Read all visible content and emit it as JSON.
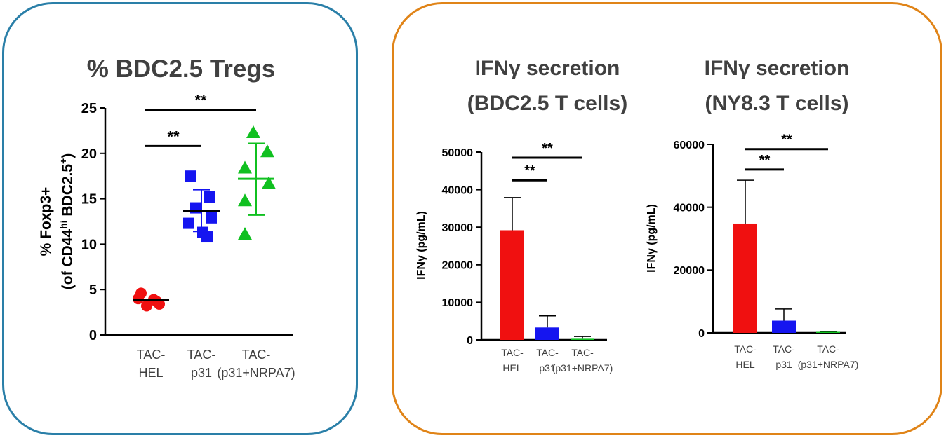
{
  "left_panel": {
    "title": "% BDC2.5 Tregs",
    "ylabel_line1": "% Foxp3+",
    "ylabel_line2": {
      "a": "(of CD44",
      "sup1": "hi",
      "b": " BDC2.5",
      "sup2": "+",
      "c": ")"
    }
  },
  "right_panel": {
    "chart1_title_line1": "IFNγ secretion",
    "chart1_title_line2": "(BDC2.5 T cells)",
    "chart2_title_line1": "IFNγ secretion",
    "chart2_title_line2": "(NY8.3 T cells)"
  },
  "colors": {
    "red": "#f01010",
    "blue": "#1515f0",
    "green": "#10c020",
    "left_border": "#2a7fa8",
    "right_border": "#e08418"
  },
  "chart_data": [
    {
      "type": "scatter",
      "title": "% BDC2.5 Tregs",
      "ylabel": "% Foxp3+ (of CD44hi BDC2.5+)",
      "ylim": [
        0,
        25
      ],
      "yticks": [
        0,
        5,
        10,
        15,
        20,
        25
      ],
      "categories": [
        {
          "lines": [
            "TAC-",
            "HEL"
          ]
        },
        {
          "lines": [
            "TAC-",
            "p31"
          ]
        },
        {
          "lines": [
            "TAC-",
            "(p31+NRPA7)"
          ]
        }
      ],
      "series": [
        {
          "name": "TAC-HEL",
          "marker": "circle",
          "color": "#f01010",
          "values": [
            4.6,
            3.9,
            3.4,
            3.2,
            4.0,
            3.7
          ],
          "mean": 3.9
        },
        {
          "name": "TAC-p31",
          "marker": "square",
          "color": "#1515f0",
          "values": [
            17.5,
            15.2,
            14.0,
            12.9,
            12.3,
            11.3,
            10.8
          ],
          "mean": 13.7,
          "sd": [
            11.4,
            16.0
          ]
        },
        {
          "name": "TAC-(p31+NRPA7)",
          "marker": "triangle",
          "color": "#10c020",
          "values": [
            22.3,
            20.2,
            18.4,
            16.7,
            14.8,
            11.1
          ],
          "mean": 17.2,
          "sd": [
            13.2,
            21.1
          ]
        }
      ],
      "significance": [
        {
          "from": 0,
          "to": 1,
          "label": "**",
          "y": 20.8
        },
        {
          "from": 0,
          "to": 2,
          "label": "**",
          "y": 24.8
        }
      ]
    },
    {
      "type": "bar",
      "title": "IFNγ secretion (BDC2.5 T cells)",
      "ylabel": "IFNγ (pg/mL)",
      "ylim": [
        0,
        50000
      ],
      "yticks": [
        0,
        10000,
        20000,
        30000,
        40000,
        50000
      ],
      "categories": [
        {
          "lines": [
            "TAC-",
            "HEL"
          ]
        },
        {
          "lines": [
            "TAC-",
            "p31"
          ]
        },
        {
          "lines": [
            "TAC-",
            "(p31+NRPA7)"
          ]
        }
      ],
      "values": [
        29200,
        3300,
        300
      ],
      "errors": [
        8700,
        3100,
        600
      ],
      "colors": [
        "#f01010",
        "#1515f0",
        "#10c020"
      ],
      "significance": [
        {
          "from": 0,
          "to": 1,
          "label": "**",
          "y": 42500
        },
        {
          "from": 0,
          "to": 2,
          "label": "**",
          "y": 48500
        }
      ]
    },
    {
      "type": "bar",
      "title": "IFNγ secretion (NY8.3 T cells)",
      "ylabel": "IFNγ (pg/mL)",
      "ylim": [
        0,
        60000
      ],
      "yticks": [
        0,
        20000,
        40000,
        60000
      ],
      "categories": [
        {
          "lines": [
            "TAC-",
            "HEL"
          ]
        },
        {
          "lines": [
            "TAC-",
            "p31"
          ]
        },
        {
          "lines": [
            "TAC-",
            "(p31+NRPA7)"
          ]
        }
      ],
      "values": [
        34800,
        3900,
        150
      ],
      "errors": [
        13800,
        3700,
        200
      ],
      "colors": [
        "#f01010",
        "#1515f0",
        "#10c020"
      ],
      "significance": [
        {
          "from": 0,
          "to": 1,
          "label": "**",
          "y": 52000
        },
        {
          "from": 0,
          "to": 2,
          "label": "**",
          "y": 58500
        }
      ]
    }
  ]
}
